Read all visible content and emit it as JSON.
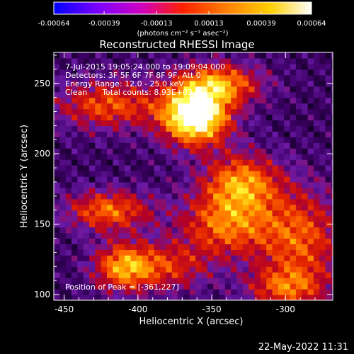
{
  "colorbar": {
    "min": -0.00064,
    "max": 0.00064,
    "tick_labels": [
      "-0.00064",
      "-0.00039",
      "-0.00013",
      "0.00013",
      "0.00039",
      "0.00064"
    ],
    "tick_values": [
      -0.00064,
      -0.00039,
      -0.00013,
      0.00013,
      0.00039,
      0.00064
    ],
    "unit_label": "(photons cm⁻² s⁻¹ asec⁻²)",
    "colors": [
      "#0000ff",
      "#7a00ff",
      "#d000c0",
      "#ff2000",
      "#ff8000",
      "#ffd000",
      "#ffffff"
    ]
  },
  "annotations": {
    "line1": "7-Jul-2015 19:05:24.000 to 19:09:04.000",
    "line2": "Detectors: 3F 5F 6F 7F 8F 9F, Att 0",
    "line3": "Energy Range: 12.0 - 25.0 keV",
    "line4": "Clean      Total counts: 8.93E+03",
    "peak": "Position of Peak = [-361,227]"
  },
  "footer_date": "22-May-2022 11:31",
  "chart_data": {
    "type": "heatmap",
    "title": "Reconstructed RHESSI Image",
    "xlabel": "Heliocentric X (arcsec)",
    "ylabel": "Heliocentric Y (arcsec)",
    "xlim": [
      -457,
      -268
    ],
    "ylim": [
      96,
      272
    ],
    "xticks": [
      -450,
      -400,
      -350,
      -300
    ],
    "yticks": [
      100,
      150,
      200,
      250
    ],
    "peak_position": [
      -361,
      227
    ],
    "colormap": [
      "#140028",
      "#3c0064",
      "#6a1aa6",
      "#b0002a",
      "#e02000",
      "#ff6a00",
      "#ffb000",
      "#ffff40",
      "#ffffff"
    ],
    "sources": [
      {
        "x": -361,
        "y": 227,
        "amp": 1.0,
        "sx": 16,
        "sy": 14
      },
      {
        "x": -345,
        "y": 250,
        "amp": 0.55,
        "sx": 20,
        "sy": 10
      },
      {
        "x": -420,
        "y": 235,
        "amp": 0.45,
        "sx": 25,
        "sy": 12
      },
      {
        "x": -330,
        "y": 180,
        "amp": 0.55,
        "sx": 18,
        "sy": 14
      },
      {
        "x": -340,
        "y": 150,
        "amp": 0.5,
        "sx": 22,
        "sy": 16
      },
      {
        "x": -420,
        "y": 160,
        "amp": 0.5,
        "sx": 20,
        "sy": 10
      },
      {
        "x": -410,
        "y": 120,
        "amp": 0.55,
        "sx": 14,
        "sy": 12
      },
      {
        "x": -290,
        "y": 140,
        "amp": 0.45,
        "sx": 20,
        "sy": 25
      },
      {
        "x": -300,
        "y": 105,
        "amp": 0.4,
        "sx": 18,
        "sy": 10
      },
      {
        "x": -380,
        "y": 120,
        "amp": 0.35,
        "sx": 20,
        "sy": 12
      }
    ]
  }
}
